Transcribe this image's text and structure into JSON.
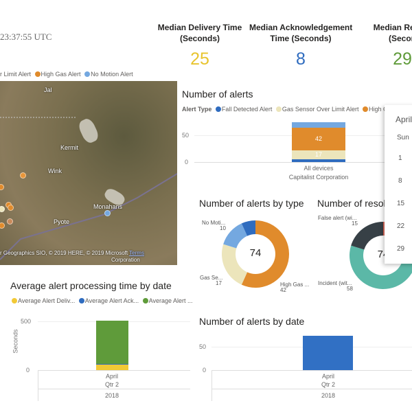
{
  "header": {
    "timestamp": "23:37:55 UTC"
  },
  "kpis": [
    {
      "title1": "Median Delivery Time",
      "title2": "(Seconds)",
      "value": "25",
      "color": "#e8c42e"
    },
    {
      "title1": "Median Acknowledgement",
      "title2": "Time (Seconds)",
      "value": "8",
      "color": "#2f6cbf"
    },
    {
      "title1": "Median Resolu",
      "title2": "(Secon",
      "value": "29",
      "color": "#5f9b3a"
    }
  ],
  "map": {
    "legend": [
      {
        "label": "r Limit Alert",
        "color": null
      },
      {
        "label": "High Gas Alert",
        "color": "#e08b2c"
      },
      {
        "label": "No Motion Alert",
        "color": "#74a8e0"
      }
    ],
    "places": [
      "Jal",
      "Kermit",
      "Wink",
      "Monahans",
      "Pyote"
    ],
    "attribution": "r Geographics SIO, © 2019 HERE, © 2019 Microsoft",
    "attribution2": "Corporation",
    "terms": "Terms"
  },
  "chart_data": [
    {
      "type": "bar",
      "title": "Number of alerts",
      "legend_title": "Alert Type",
      "stacked": true,
      "categories": [
        "All devices Capitalist Corporation"
      ],
      "category_line1": "All devices",
      "category_line2": "Capitalist Corporation",
      "yticks": [
        "0",
        "50"
      ],
      "ylim": [
        0,
        75
      ],
      "series": [
        {
          "name": "Fall Detected Alert",
          "color": "#2f6cbf",
          "values": [
            5
          ]
        },
        {
          "name": "Gas Sensor Over Limit Alert",
          "color": "#ece5bb",
          "values": [
            17
          ]
        },
        {
          "name": "High Ga",
          "color": "#e08b2c",
          "values": [
            42
          ]
        },
        {
          "color": "#74a8e0",
          "values": [
            10
          ]
        }
      ]
    },
    {
      "type": "pie",
      "title": "Number of alerts by type",
      "total": "74",
      "slices": [
        {
          "label": "High Gas ...",
          "value": 42,
          "color": "#e08b2c"
        },
        {
          "label": "Gas Se...",
          "value": 17,
          "color": "#ece5bb"
        },
        {
          "label": "No Moti...",
          "value": 10,
          "color": "#74a8e0"
        },
        {
          "value": 5,
          "color": "#2f6cbf"
        }
      ]
    },
    {
      "type": "pie",
      "title": "Number of resolu",
      "total": "74",
      "slices": [
        {
          "label": "Incident (wit...",
          "value": 58,
          "color": "#5bb8a7"
        },
        {
          "label": "False alert (wi...",
          "value": 15,
          "color": "#374046"
        },
        {
          "label": "",
          "value": 1,
          "color": "#e06b5c"
        }
      ]
    },
    {
      "type": "bar",
      "title": "Average alert processing time by date",
      "stacked": true,
      "ylabel": "Seconds",
      "categories": [
        "April"
      ],
      "x_sub": "Qtr 2",
      "x_year": "2018",
      "yticks": [
        "0",
        "500"
      ],
      "ylim": [
        0,
        520
      ],
      "series": [
        {
          "name": "Average Alert Deliv...",
          "color": "#f2c936",
          "values": [
            55
          ]
        },
        {
          "name": "Average Alert Ack...",
          "color": "#2f6cbf",
          "values": [
            8
          ]
        },
        {
          "name": "Average Alert ...",
          "color": "#5f9b3a",
          "values": [
            445
          ]
        }
      ]
    },
    {
      "type": "bar",
      "title": "Number of alerts by date",
      "categories": [
        "April"
      ],
      "x_sub": "Qtr 2",
      "x_year": "2018",
      "yticks": [
        "0",
        "50"
      ],
      "ylim": [
        0,
        75
      ],
      "series": [
        {
          "color": "#3170c4",
          "values": [
            74
          ]
        }
      ]
    }
  ],
  "calendar": {
    "month": "April",
    "day_header": "Sun",
    "days": [
      "1",
      "8",
      "15",
      "22",
      "29"
    ]
  }
}
